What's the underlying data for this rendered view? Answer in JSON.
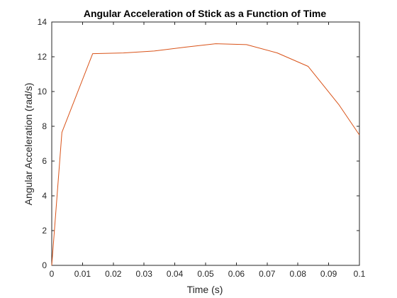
{
  "chart_data": {
    "type": "line",
    "title": "Angular Acceleration of Stick as a Function of Time",
    "xlabel": "Time (s)",
    "ylabel": "Angular Acceleration (rad/s)",
    "xlim": [
      0,
      0.1
    ],
    "ylim": [
      0,
      14
    ],
    "grid": false,
    "x_ticks": [
      0,
      0.01,
      0.02,
      0.03,
      0.04,
      0.05,
      0.06,
      0.07,
      0.08,
      0.09,
      0.1
    ],
    "x_tick_labels": [
      "0",
      "0.01",
      "0.02",
      "0.03",
      "0.04",
      "0.05",
      "0.06",
      "0.07",
      "0.08",
      "0.09",
      "0.1"
    ],
    "y_ticks": [
      0,
      2,
      4,
      6,
      8,
      10,
      12,
      14
    ],
    "y_tick_labels": [
      "0",
      "2",
      "4",
      "6",
      "8",
      "10",
      "12",
      "14"
    ],
    "series": [
      {
        "color": "#d95319",
        "x": [
          0,
          0.0033,
          0.0133,
          0.0233,
          0.0333,
          0.0433,
          0.0533,
          0.0633,
          0.0733,
          0.0833,
          0.0933,
          0.1
        ],
        "y": [
          0,
          7.65,
          12.18,
          12.22,
          12.33,
          12.55,
          12.75,
          12.7,
          12.22,
          11.45,
          9.25,
          7.5
        ]
      }
    ]
  }
}
